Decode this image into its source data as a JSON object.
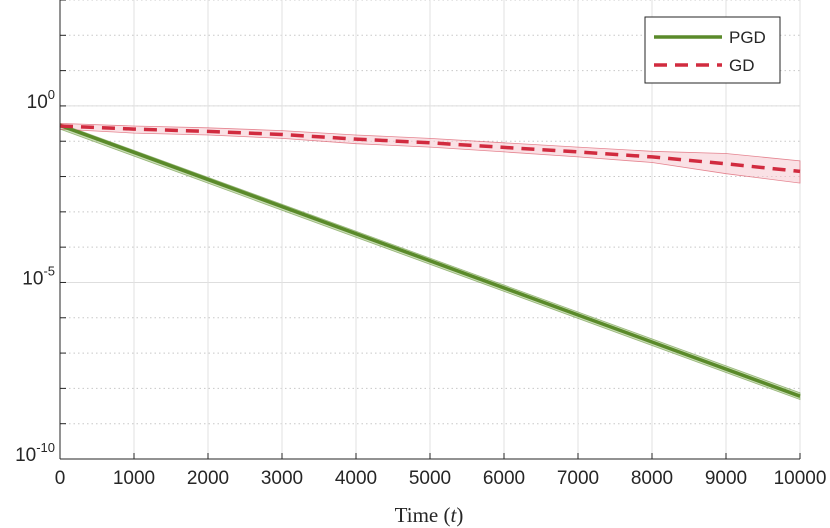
{
  "chart_data": {
    "type": "line",
    "title": "",
    "xlabel": "Time",
    "xlabel_var": "t",
    "ylabel": "",
    "yscale": "log",
    "xlim": [
      0,
      10000
    ],
    "ylim": [
      1e-10,
      1000
    ],
    "grid": true,
    "legend_position": "top-right",
    "xticks": [
      0,
      1000,
      2000,
      3000,
      4000,
      5000,
      6000,
      7000,
      8000,
      9000,
      10000
    ],
    "xtick_labels": [
      "0",
      "1000",
      "2000",
      "3000",
      "4000",
      "5000",
      "6000",
      "7000",
      "8000",
      "9000",
      "10000"
    ],
    "yticks": [
      {
        "value": 1,
        "base": "10",
        "exp": "0"
      },
      {
        "value": 1e-05,
        "base": "10",
        "exp": "-5"
      },
      {
        "value": 1e-10,
        "base": "10",
        "exp": "-10"
      }
    ],
    "series": [
      {
        "name": "PGD",
        "color": "#5a8a2a",
        "band_color": "#9dbf7a",
        "style": "solid",
        "x": [
          0,
          10000
        ],
        "y": [
          0.28,
          6e-09
        ],
        "band_low": [
          0.22,
          4.8e-09
        ],
        "band_high": [
          0.32,
          7.5e-09
        ]
      },
      {
        "name": "GD",
        "color": "#d12b3f",
        "band_color": "#f5c9cf",
        "style": "dashed",
        "x": [
          0,
          1000,
          2000,
          3000,
          4000,
          5000,
          6000,
          7000,
          8000,
          9000,
          10000
        ],
        "y": [
          0.27,
          0.22,
          0.19,
          0.155,
          0.115,
          0.09,
          0.067,
          0.05,
          0.036,
          0.023,
          0.014
        ],
        "band_low": [
          0.22,
          0.17,
          0.15,
          0.12,
          0.085,
          0.068,
          0.05,
          0.036,
          0.025,
          0.012,
          0.0065
        ],
        "band_high": [
          0.32,
          0.27,
          0.24,
          0.2,
          0.15,
          0.12,
          0.09,
          0.068,
          0.052,
          0.045,
          0.028
        ]
      }
    ]
  }
}
